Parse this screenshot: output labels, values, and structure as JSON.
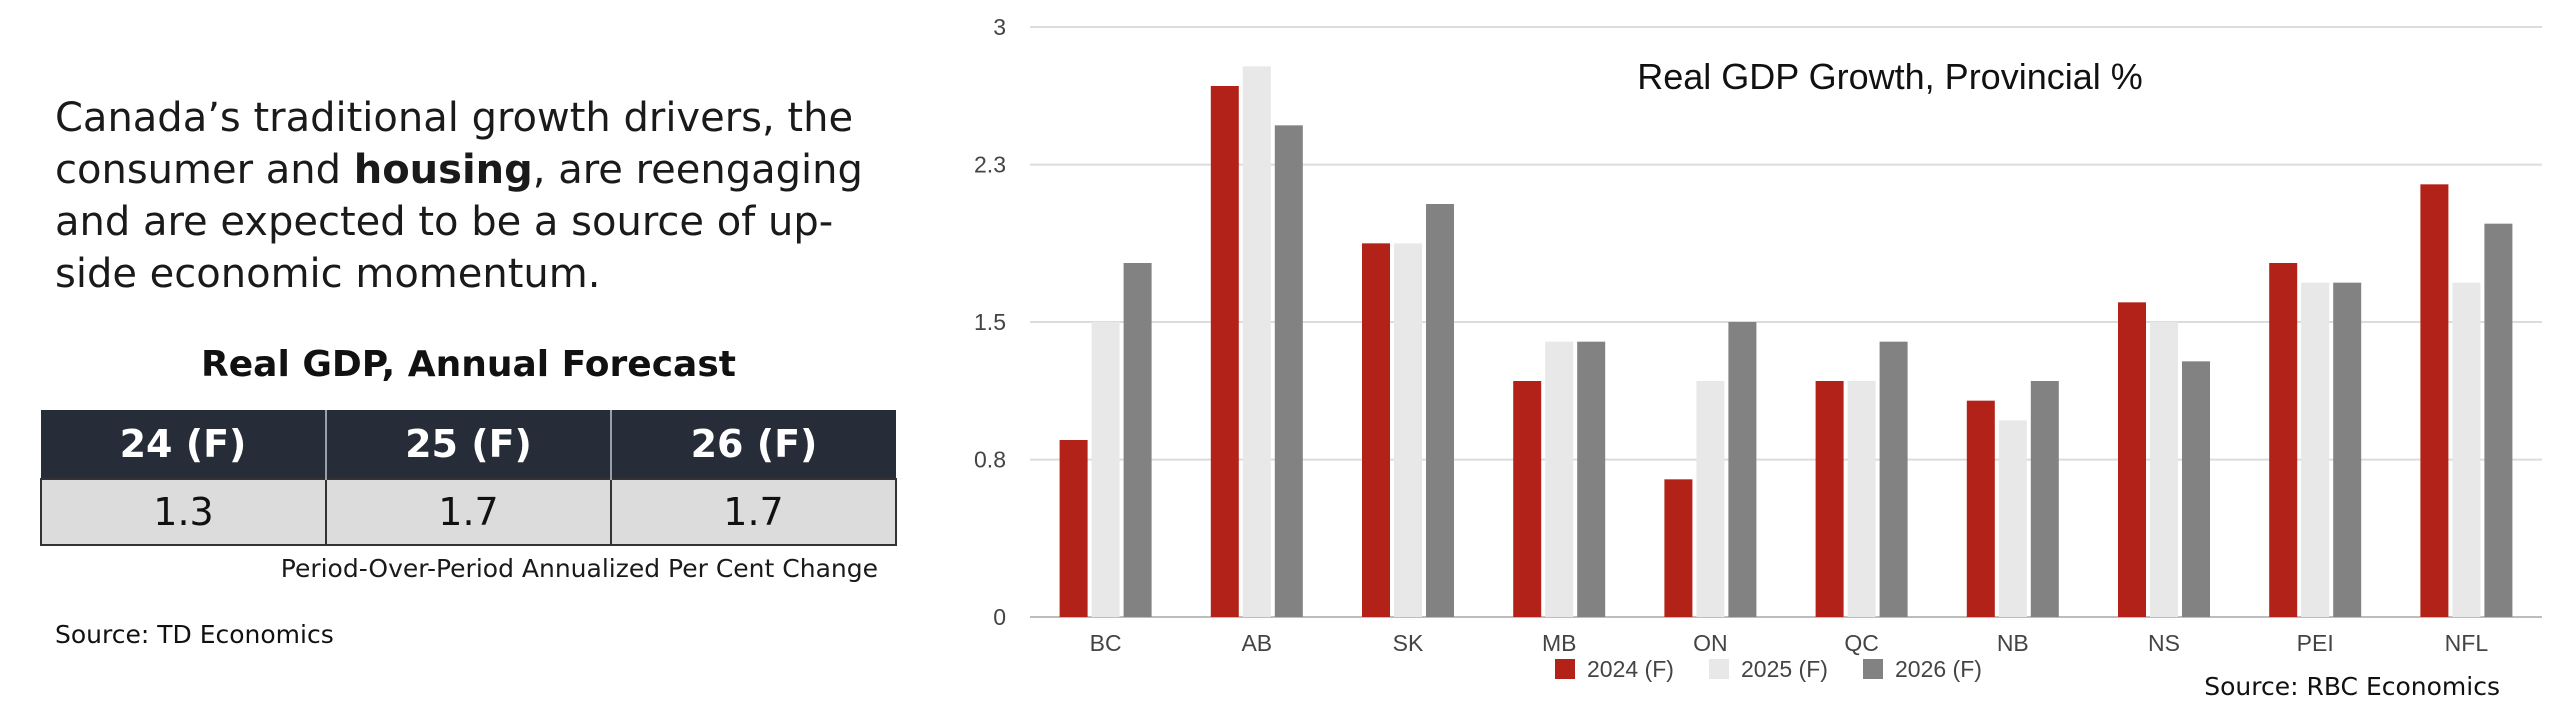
{
  "headline": {
    "part1": "Canada’s traditional growth drivers, the consumer and ",
    "bold": "housing",
    "part2": ", are reengaging and are expected to be a source of up-side economic momentum."
  },
  "forecast_table": {
    "title": "Real GDP, Annual Forecast",
    "headers": [
      "24 (F)",
      "25 (F)",
      "26 (F)"
    ],
    "values": [
      "1.3",
      "1.7",
      "1.7"
    ],
    "note": "Period-Over-Period Annualized Per Cent Change",
    "source": "Source: TD Economics"
  },
  "chart_source": "Source: RBC Economics",
  "chart_data": {
    "type": "bar",
    "title": "Real GDP Growth, Provincial %",
    "xlabel": "",
    "ylabel": "",
    "ylim": [
      0,
      3
    ],
    "y_ticks": [
      0,
      0.8,
      1.5,
      2.3,
      3
    ],
    "y_tick_labels": [
      "0",
      "0.8",
      "1.5",
      "2.3",
      "3"
    ],
    "grid": true,
    "legend_position": "bottom",
    "categories": [
      "BC",
      "AB",
      "SK",
      "MB",
      "ON",
      "QC",
      "NB",
      "NS",
      "PEI",
      "NFL"
    ],
    "series": [
      {
        "name": "2024 (F)",
        "color": "#b22218",
        "values": [
          0.9,
          2.7,
          1.9,
          1.2,
          0.7,
          1.2,
          1.1,
          1.6,
          1.8,
          2.2
        ]
      },
      {
        "name": "2025 (F)",
        "color": "#e8e8e8",
        "values": [
          1.5,
          2.8,
          1.9,
          1.4,
          1.2,
          1.2,
          1.0,
          1.5,
          1.7,
          1.7
        ]
      },
      {
        "name": "2026 (F)",
        "color": "#828282",
        "values": [
          1.8,
          2.5,
          2.1,
          1.4,
          1.5,
          1.4,
          1.2,
          1.3,
          1.7,
          2.0
        ]
      }
    ]
  }
}
